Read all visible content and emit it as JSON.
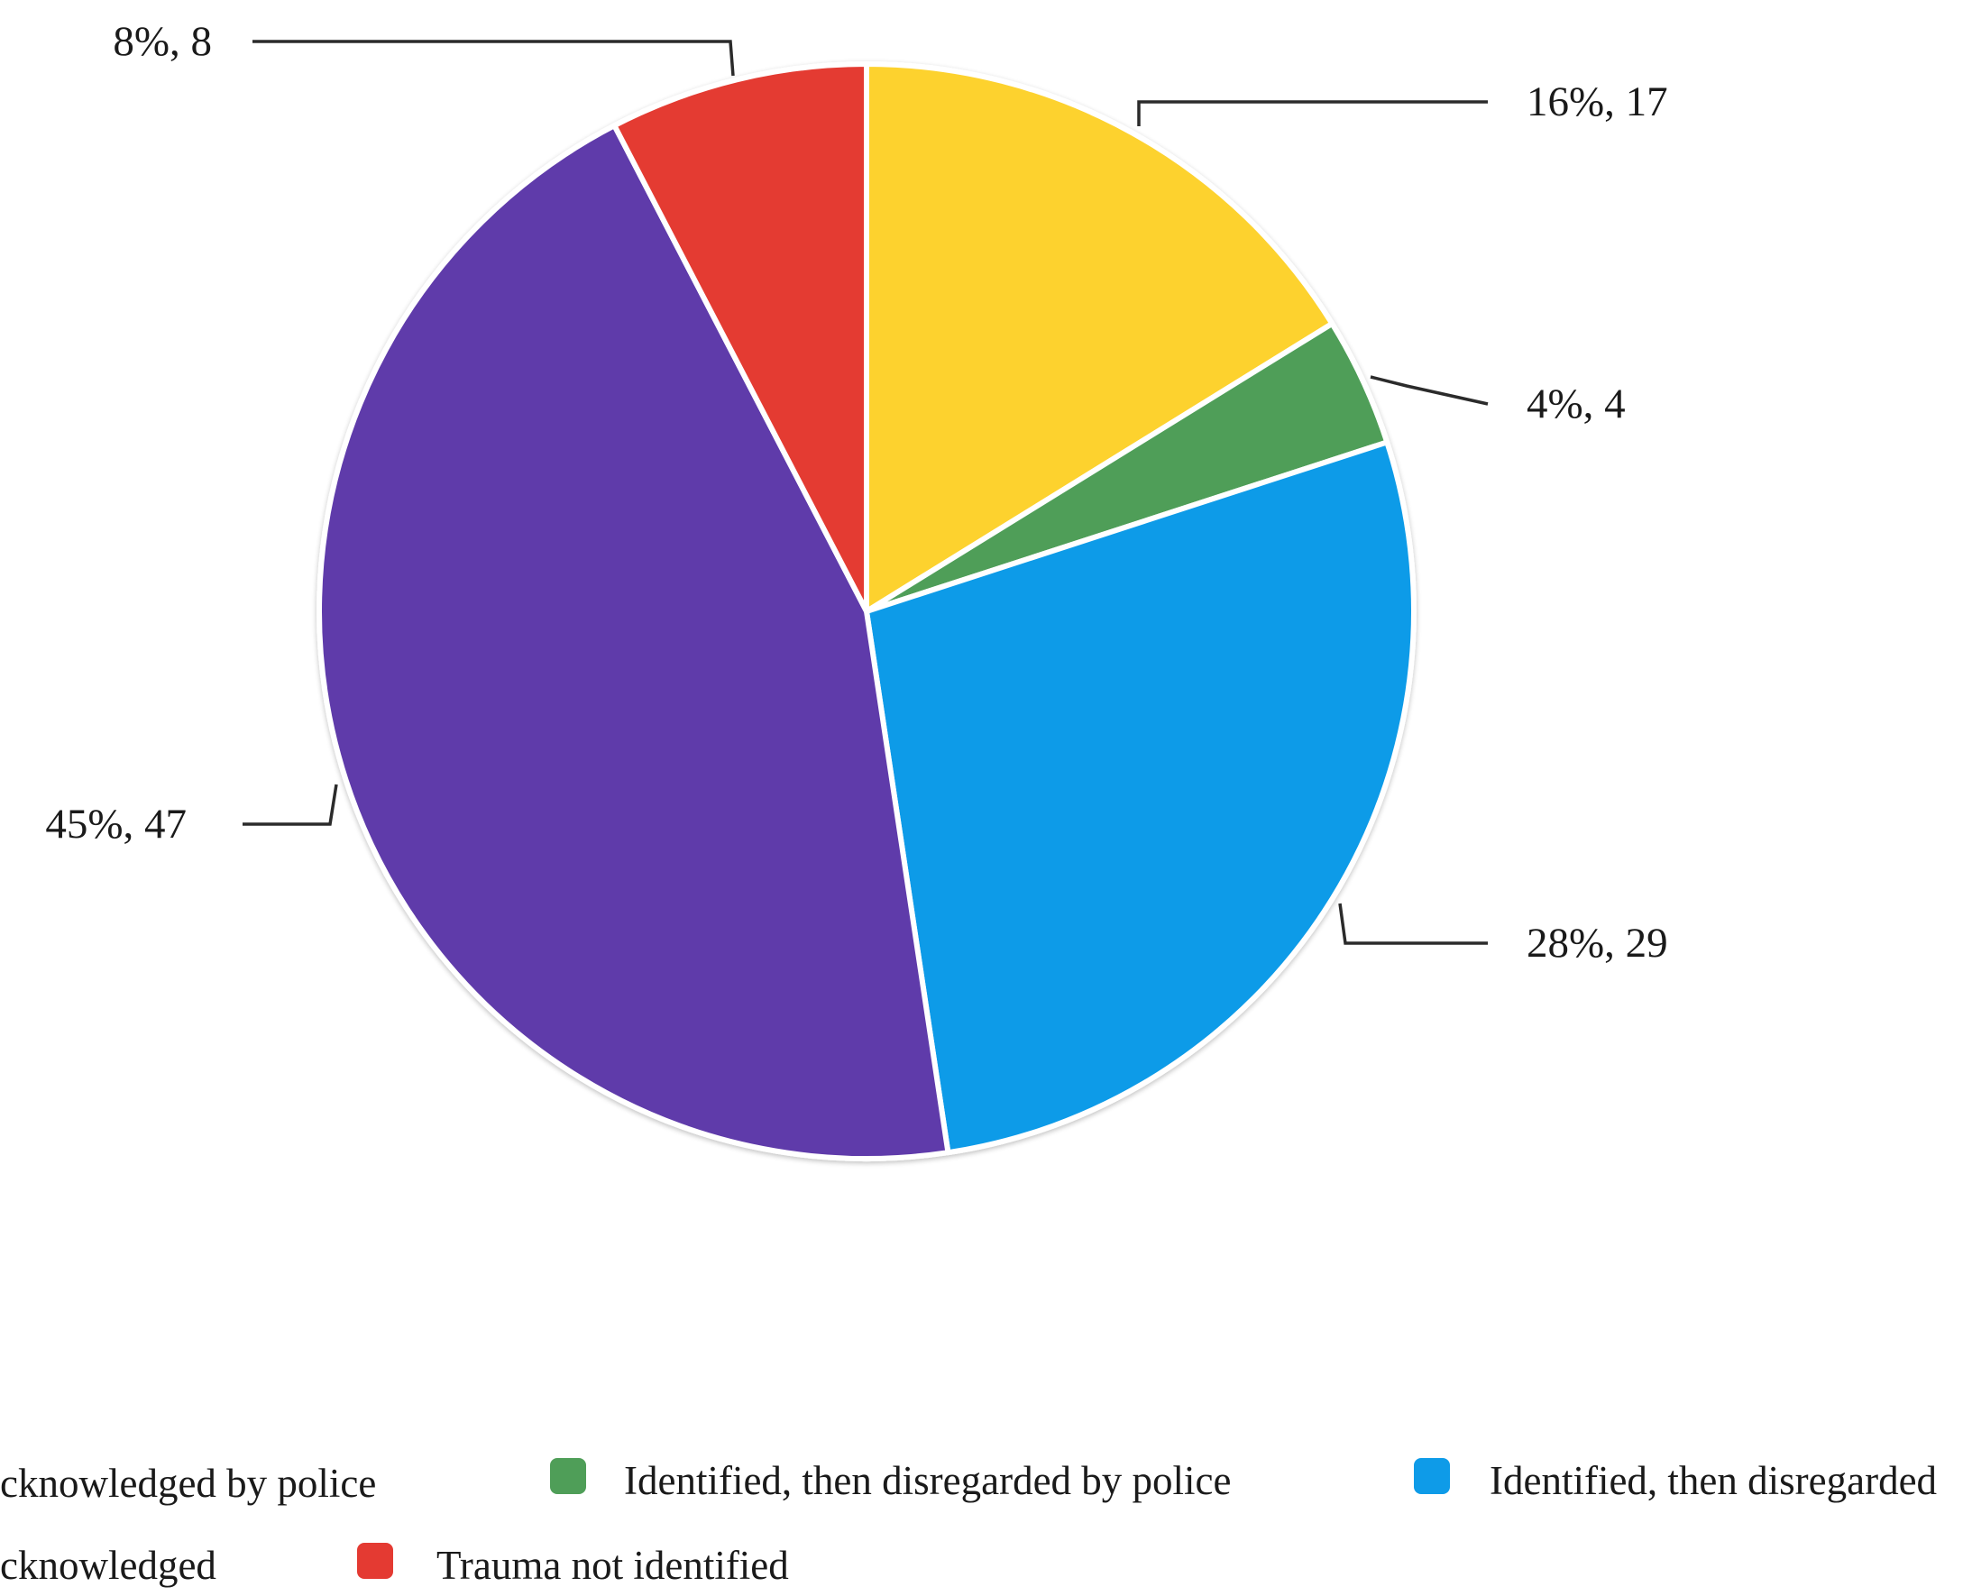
{
  "chart_data": {
    "type": "pie",
    "title": "",
    "slices": [
      {
        "label": "Trauma identified and acknowledged by police",
        "value": 17,
        "percent_label": "16%, 17",
        "color": "#fdd22f"
      },
      {
        "label": "Identified, then disregarded by police",
        "value": 4,
        "percent_label": "4%, 4",
        "color": "#4f9e58"
      },
      {
        "label": "Identified, then disregarded",
        "value": 29,
        "percent_label": "28%, 29",
        "color": "#0e9be8"
      },
      {
        "label": "Trauma identified and acknowledged",
        "value": 47,
        "percent_label": "45%, 47",
        "color": "#5f3aaa"
      },
      {
        "label": "Trauma not identified",
        "value": 8,
        "percent_label": "8%, 8",
        "color": "#e43a32"
      }
    ],
    "legend": {
      "placement": "bottom",
      "items": [
        {
          "text": "cknowledged by police",
          "color": "#fdd22f"
        },
        {
          "text": "Identified, then disregarded by police",
          "color": "#4f9e58"
        },
        {
          "text": "Identified, then disregarded",
          "color": "#0e9be8"
        },
        {
          "text": "cknowledged",
          "color": "#5f3aaa"
        },
        {
          "text": "Trauma not identified",
          "color": "#e43a32"
        }
      ]
    }
  }
}
